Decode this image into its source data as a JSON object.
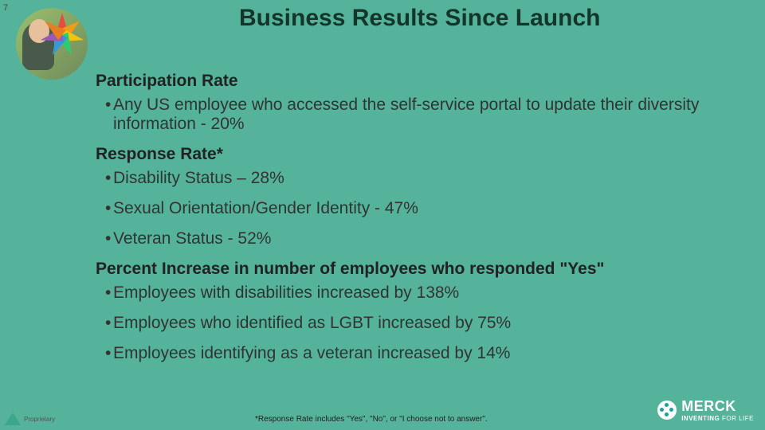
{
  "page_number": "7",
  "background_color": "#54b39a",
  "title": {
    "text": "Business Results Since Launch",
    "color": "#13352a",
    "fontsize": 30
  },
  "avatar": {
    "bg_gradient_from": "#9bbf6e",
    "bg_gradient_to": "#6f8a5a",
    "skin": "#e6c19c",
    "shirt": "#4a5a4a",
    "umbrella_colors": [
      "#e74c3c",
      "#f39c12",
      "#f1c40f",
      "#2ecc71",
      "#3498db",
      "#9b59b6",
      "#e67e22"
    ]
  },
  "content": {
    "heading_fontsize": 21,
    "bullet_fontsize": 21,
    "heading_color": "#222222",
    "bullet_color": "#333333",
    "sections": [
      {
        "heading": "Participation Rate",
        "bullets": [
          "Any US employee who accessed the self-service portal to update their diversity information - 20%"
        ]
      },
      {
        "heading": "Response Rate*",
        "bullets": [
          "Disability Status – 28%",
          "Sexual Orientation/Gender Identity - 47%",
          "Veteran Status - 52%"
        ]
      },
      {
        "heading": "Percent Increase in number of employees who responded \"Yes\"",
        "bullets": [
          "Employees with disabilities increased by 138%",
          "Employees who identified as LGBT increased by 75%",
          "Employees identifying as a veteran increased by 14%"
        ]
      }
    ]
  },
  "footnote": "*Response Rate includes \"Yes\", \"No\", or \"I choose not to answer\".",
  "footer_left": {
    "triangle_color": "#3aa68a",
    "label": "Proprietary"
  },
  "footer_right": {
    "mark_bg": "#ffffff",
    "mark_dots": "#1aa296",
    "brand": "MERCK",
    "tagline_bold": "INVENTING",
    "tagline_rest": " FOR LIFE",
    "text_color": "#ffffff"
  }
}
